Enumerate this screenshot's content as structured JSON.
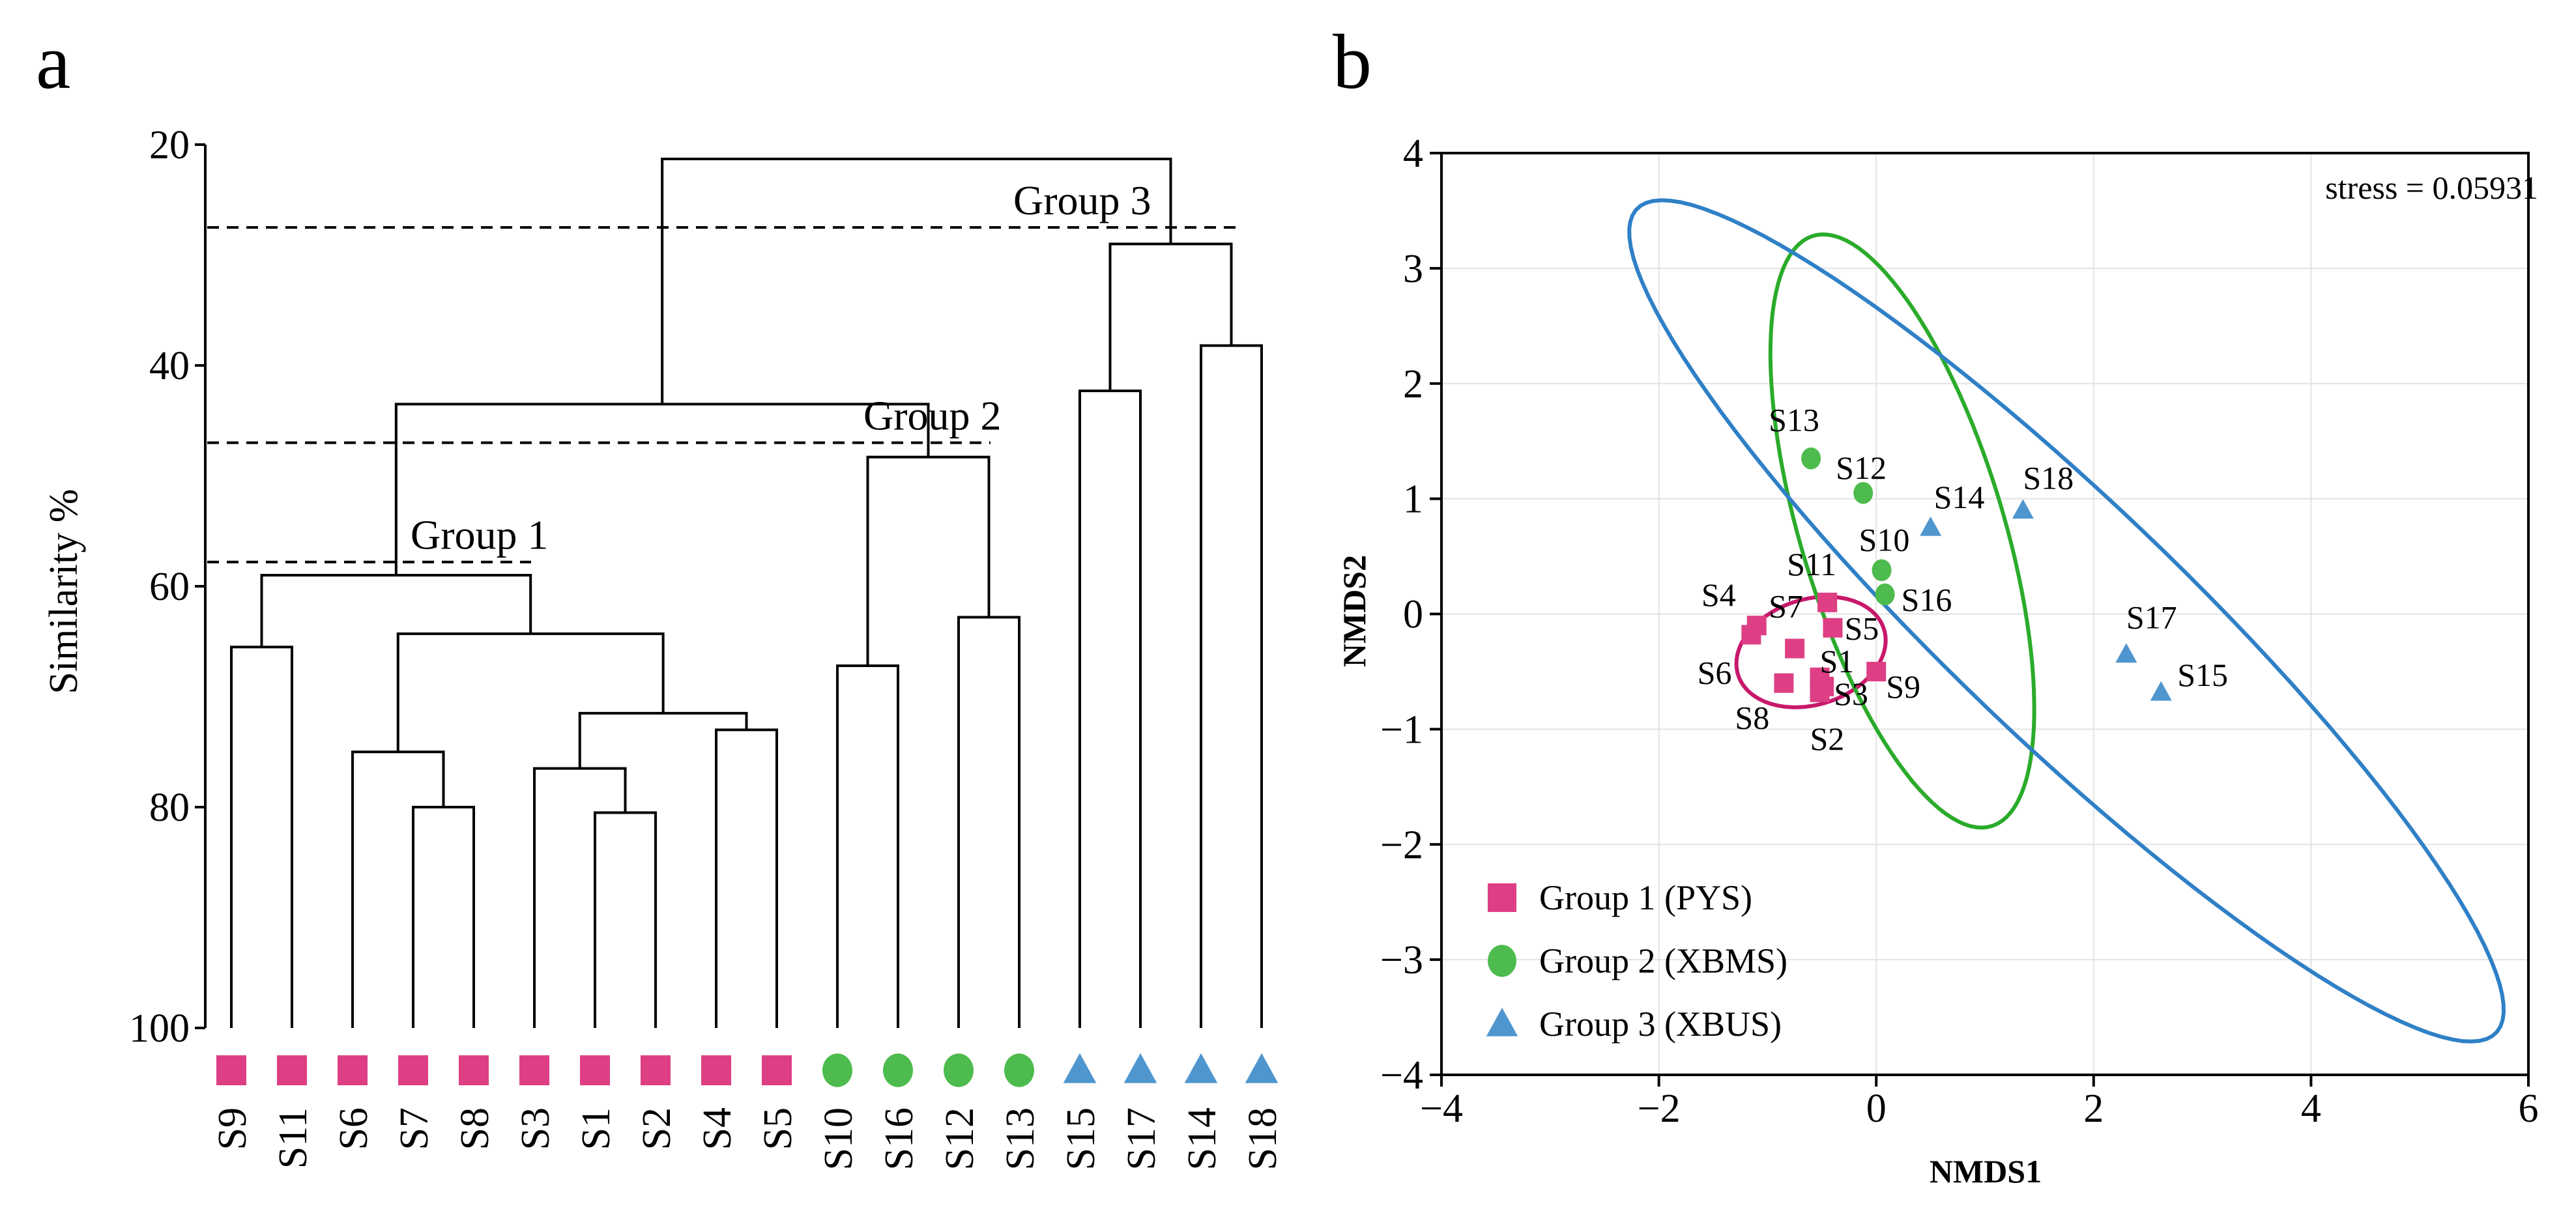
{
  "colors": {
    "group1": "#de3f84",
    "group2": "#4dbb4d",
    "group3": "#4f96cf",
    "group1_ellipse": "#c8186a",
    "group2_ellipse": "#2bab2b",
    "group3_ellipse": "#2f80c6"
  },
  "chart_data": [
    {
      "type": "dendrogram",
      "panel_label": "a",
      "ylabel": "Similarity %",
      "ylim": [
        20,
        100
      ],
      "yticks": [
        20,
        40,
        60,
        80,
        100
      ],
      "leaves": [
        {
          "name": "S9",
          "group": 1
        },
        {
          "name": "S11",
          "group": 1
        },
        {
          "name": "S6",
          "group": 1
        },
        {
          "name": "S7",
          "group": 1
        },
        {
          "name": "S8",
          "group": 1
        },
        {
          "name": "S3",
          "group": 1
        },
        {
          "name": "S1",
          "group": 1
        },
        {
          "name": "S2",
          "group": 1
        },
        {
          "name": "S4",
          "group": 1
        },
        {
          "name": "S5",
          "group": 1
        },
        {
          "name": "S10",
          "group": 2
        },
        {
          "name": "S16",
          "group": 2
        },
        {
          "name": "S12",
          "group": 2
        },
        {
          "name": "S13",
          "group": 2
        },
        {
          "name": "S15",
          "group": 3
        },
        {
          "name": "S17",
          "group": 3
        },
        {
          "name": "S14",
          "group": 3
        },
        {
          "name": "S18",
          "group": 3
        }
      ],
      "merges": [
        {
          "left": "S9",
          "right": "S11",
          "similarity": 65.5
        },
        {
          "left": "S7",
          "right": "S8",
          "similarity": 80
        },
        {
          "left": "S6",
          "right": "S7+S8",
          "similarity": 75
        },
        {
          "left": "S1",
          "right": "S2",
          "similarity": 80.5
        },
        {
          "left": "S3",
          "right": "S1+S2",
          "similarity": 76.5
        },
        {
          "left": "S4",
          "right": "S5",
          "similarity": 73
        },
        {
          "left": "S3+S1+S2",
          "right": "S4+S5",
          "similarity": 71.5
        },
        {
          "left": "S6+S7+S8",
          "right": "S3+S1+S2+S4+S5",
          "similarity": 64.3
        },
        {
          "left": "S9+S11",
          "right": "S6..S5",
          "similarity": 59
        },
        {
          "left": "S10",
          "right": "S16",
          "similarity": 67.2
        },
        {
          "left": "S12",
          "right": "S13",
          "similarity": 62.8
        },
        {
          "left": "S10+S16",
          "right": "S12+S13",
          "similarity": 48.3
        },
        {
          "left": "Group 1",
          "right": "Group 2",
          "similarity": 43.5
        },
        {
          "left": "S15",
          "right": "S17",
          "similarity": 42.3
        },
        {
          "left": "S14",
          "right": "S18",
          "similarity": 38.2
        },
        {
          "left": "S15+S17",
          "right": "S14+S18",
          "similarity": 29
        },
        {
          "left": "Group 1+2",
          "right": "Group 3",
          "similarity": 21.3
        }
      ],
      "cutoffs": [
        {
          "label": "Group 1",
          "similarity": 57.8
        },
        {
          "label": "Group 2",
          "similarity": 47
        },
        {
          "label": "Group 3",
          "similarity": 27.5
        }
      ]
    },
    {
      "type": "scatter",
      "panel_label": "b",
      "xlabel": "NMDS1",
      "ylabel": "NMDS2",
      "xlim": [
        -4,
        6
      ],
      "ylim": [
        -4,
        4
      ],
      "xticks": [
        -4,
        -2,
        0,
        2,
        4,
        6
      ],
      "yticks": [
        -4,
        -3,
        -2,
        -1,
        0,
        1,
        2,
        3,
        4
      ],
      "xtick_labels": [
        "−4",
        "−2",
        "0",
        "2",
        "4",
        "6"
      ],
      "ytick_labels": [
        "−4",
        "−3",
        "−2",
        "−1",
        "0",
        "1",
        "2",
        "3",
        "4"
      ],
      "annotation": "stress = 0.05931",
      "grid": true,
      "series": [
        {
          "name": "Group 1 (PYS)",
          "group": 1,
          "marker": "square",
          "points": [
            {
              "label": "S4",
              "x": -1.1,
              "y": -0.1
            },
            {
              "label": "S6",
              "x": -1.15,
              "y": -0.18
            },
            {
              "label": "S7",
              "x": -0.75,
              "y": -0.3
            },
            {
              "label": "S11",
              "x": -0.45,
              "y": 0.1
            },
            {
              "label": "S5",
              "x": -0.4,
              "y": -0.12
            },
            {
              "label": "S8",
              "x": -0.85,
              "y": -0.6
            },
            {
              "label": "S1",
              "x": -0.52,
              "y": -0.55
            },
            {
              "label": "S3",
              "x": -0.48,
              "y": -0.63
            },
            {
              "label": "S2",
              "x": -0.52,
              "y": -0.68
            },
            {
              "label": "S9",
              "x": 0.0,
              "y": -0.5
            }
          ]
        },
        {
          "name": "Group 2 (XBMS)",
          "group": 2,
          "marker": "circle",
          "points": [
            {
              "label": "S13",
              "x": -0.6,
              "y": 1.35
            },
            {
              "label": "S12",
              "x": -0.12,
              "y": 1.05
            },
            {
              "label": "S10",
              "x": 0.05,
              "y": 0.38
            },
            {
              "label": "S16",
              "x": 0.08,
              "y": 0.17
            }
          ]
        },
        {
          "name": "Group 3 (XBUS)",
          "group": 3,
          "marker": "triangle",
          "points": [
            {
              "label": "S14",
              "x": 0.5,
              "y": 0.75
            },
            {
              "label": "S18",
              "x": 1.35,
              "y": 0.9
            },
            {
              "label": "S17",
              "x": 2.3,
              "y": -0.35
            },
            {
              "label": "S15",
              "x": 2.62,
              "y": -0.68
            }
          ]
        }
      ],
      "ellipses": [
        {
          "group": 1,
          "cx": -0.6,
          "cy": -0.33,
          "rx": 0.7,
          "ry": 0.46,
          "angle": 15
        },
        {
          "group": 2,
          "cx": 0.24,
          "cy": 0.72,
          "rx": 0.93,
          "ry": 2.69,
          "angle": 18
        },
        {
          "group": 3,
          "cx": 1.75,
          "cy": -0.06,
          "rx": 5.33,
          "ry": 1.05,
          "angle": -42
        }
      ]
    }
  ]
}
